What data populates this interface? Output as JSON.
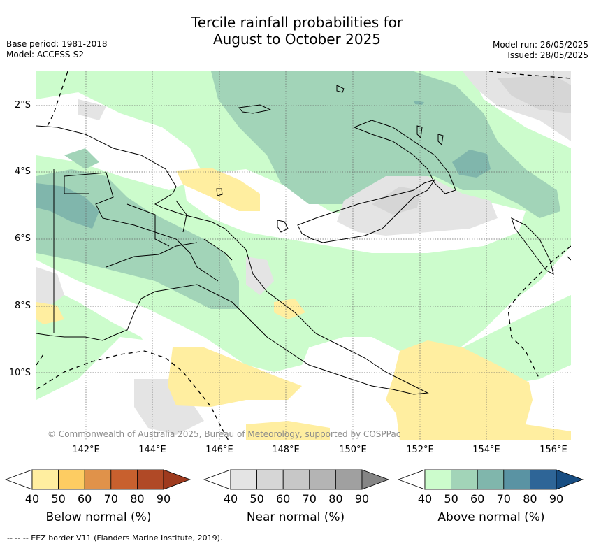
{
  "title_line1": "Tercile rainfall probabilities for",
  "title_line2": "August to October 2025",
  "base_period": "Base period: 1981-2018",
  "model": "Model: ACCESS-S2",
  "model_run": "Model run: 26/05/2025",
  "issued": "Issued: 28/05/2025",
  "copyright": "© Commonwealth of Australia 2025, Bureau of Meteorology, supported by COSPPac",
  "lat_labels": [
    "2°S",
    "4°S",
    "6°S",
    "8°S",
    "10°S"
  ],
  "lon_labels": [
    "142°E",
    "144°E",
    "146°E",
    "148°E",
    "150°E",
    "152°E",
    "154°E",
    "156°E"
  ],
  "colorbars": [
    {
      "title": "Below normal (%)",
      "ticks": [
        "40",
        "50",
        "60",
        "70",
        "80",
        "90"
      ],
      "colors": [
        "#ffffff",
        "#ffeea0",
        "#fdcc62",
        "#e0924a",
        "#c8602e",
        "#b04926",
        "#9e3a1e"
      ]
    },
    {
      "title": "Near normal (%)",
      "ticks": [
        "40",
        "50",
        "60",
        "70",
        "80",
        "90"
      ],
      "colors": [
        "#ffffff",
        "#e4e4e4",
        "#d6d6d6",
        "#c7c7c7",
        "#b4b4b4",
        "#a0a0a0",
        "#858585"
      ]
    },
    {
      "title": "Above normal (%)",
      "ticks": [
        "40",
        "50",
        "60",
        "70",
        "80",
        "90"
      ],
      "colors": [
        "#ffffff",
        "#ccfccc",
        "#a2d4b8",
        "#80b6ac",
        "#5a93a3",
        "#2e6597",
        "#174d82"
      ]
    }
  ],
  "footer": "--  --  -- EEZ border V11 (Flanders Marine Institute, 2019).",
  "map_colors": {
    "land": "#ffffff",
    "near_normal": "#e4e4e4",
    "near_normal_dark": "#d6d6d6",
    "above_50": "#ccfccc",
    "above_60": "#a2d4b8",
    "above_70": "#80b6ac",
    "below_50": "#ffeea0"
  }
}
